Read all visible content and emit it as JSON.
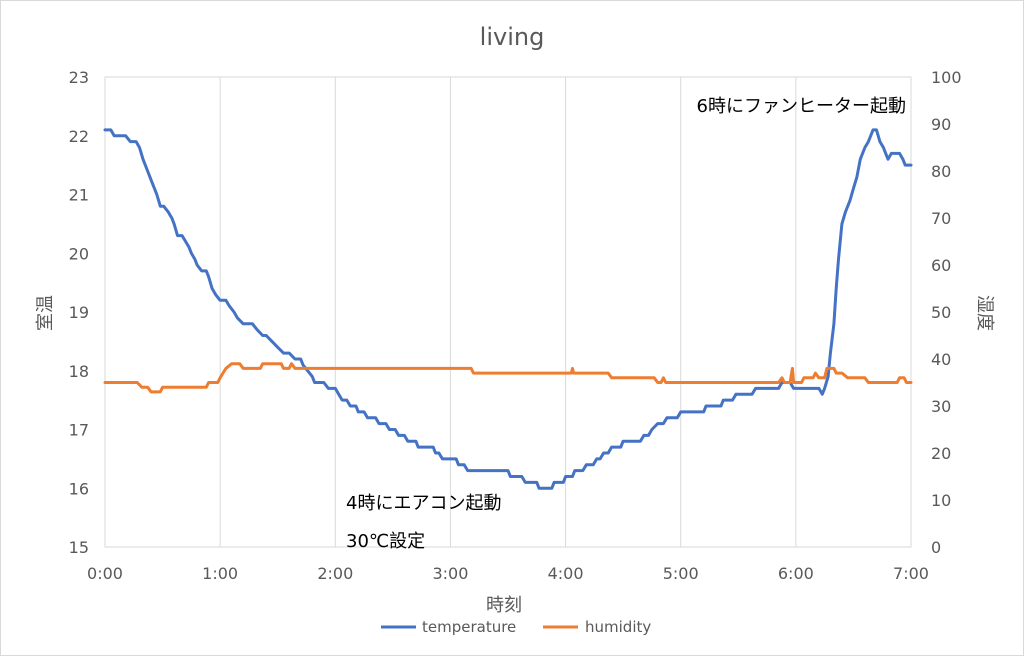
{
  "chart_data": {
    "type": "line",
    "title": "living",
    "xlabel": "時刻",
    "ylabel_left": "室温",
    "ylabel_right": "湿度",
    "x_unit": "hours",
    "xlim": [
      0,
      7
    ],
    "ylim_left": [
      15,
      23
    ],
    "ylim_right": [
      0,
      100
    ],
    "x_ticks": [
      "0:00",
      "1:00",
      "2:00",
      "3:00",
      "4:00",
      "5:00",
      "6:00",
      "7:00"
    ],
    "y_left_ticks": [
      "15",
      "16",
      "17",
      "18",
      "19",
      "20",
      "21",
      "22",
      "23"
    ],
    "y_right_ticks": [
      "0",
      "10",
      "20",
      "30",
      "40",
      "50",
      "60",
      "70",
      "80",
      "90",
      "100"
    ],
    "grid": "vertical",
    "legend": "bottom",
    "colors": {
      "temperature": "#4472c4",
      "humidity": "#ed7d31",
      "grid": "#d9d9d9",
      "text": "#595959"
    },
    "annotations": [
      "6時にファンヒーター起動",
      "4時にエアコン起動",
      "30℃設定"
    ],
    "series": [
      {
        "name": "temperature",
        "axis": "left",
        "points": [
          [
            0.0,
            22.1
          ],
          [
            0.05,
            22.1
          ],
          [
            0.08,
            22.0
          ],
          [
            0.18,
            22.0
          ],
          [
            0.22,
            21.9
          ],
          [
            0.27,
            21.9
          ],
          [
            0.3,
            21.8
          ],
          [
            0.33,
            21.6
          ],
          [
            0.37,
            21.4
          ],
          [
            0.41,
            21.2
          ],
          [
            0.45,
            21.0
          ],
          [
            0.48,
            20.8
          ],
          [
            0.51,
            20.8
          ],
          [
            0.55,
            20.7
          ],
          [
            0.58,
            20.6
          ],
          [
            0.6,
            20.5
          ],
          [
            0.63,
            20.3
          ],
          [
            0.67,
            20.3
          ],
          [
            0.7,
            20.2
          ],
          [
            0.73,
            20.1
          ],
          [
            0.75,
            20.0
          ],
          [
            0.78,
            19.9
          ],
          [
            0.8,
            19.8
          ],
          [
            0.84,
            19.7
          ],
          [
            0.88,
            19.7
          ],
          [
            0.9,
            19.6
          ],
          [
            0.93,
            19.4
          ],
          [
            0.96,
            19.3
          ],
          [
            1.0,
            19.2
          ],
          [
            1.05,
            19.2
          ],
          [
            1.08,
            19.1
          ],
          [
            1.12,
            19.0
          ],
          [
            1.15,
            18.9
          ],
          [
            1.2,
            18.8
          ],
          [
            1.28,
            18.8
          ],
          [
            1.32,
            18.7
          ],
          [
            1.37,
            18.6
          ],
          [
            1.4,
            18.6
          ],
          [
            1.45,
            18.5
          ],
          [
            1.5,
            18.4
          ],
          [
            1.55,
            18.3
          ],
          [
            1.6,
            18.3
          ],
          [
            1.65,
            18.2
          ],
          [
            1.7,
            18.2
          ],
          [
            1.72,
            18.1
          ],
          [
            1.76,
            18.0
          ],
          [
            1.8,
            17.9
          ],
          [
            1.82,
            17.8
          ],
          [
            1.9,
            17.8
          ],
          [
            1.94,
            17.7
          ],
          [
            2.0,
            17.7
          ],
          [
            2.03,
            17.6
          ],
          [
            2.06,
            17.5
          ],
          [
            2.1,
            17.5
          ],
          [
            2.13,
            17.4
          ],
          [
            2.18,
            17.4
          ],
          [
            2.2,
            17.3
          ],
          [
            2.25,
            17.3
          ],
          [
            2.28,
            17.2
          ],
          [
            2.35,
            17.2
          ],
          [
            2.38,
            17.1
          ],
          [
            2.44,
            17.1
          ],
          [
            2.47,
            17.0
          ],
          [
            2.52,
            17.0
          ],
          [
            2.55,
            16.9
          ],
          [
            2.6,
            16.9
          ],
          [
            2.63,
            16.8
          ],
          [
            2.7,
            16.8
          ],
          [
            2.72,
            16.7
          ],
          [
            2.85,
            16.7
          ],
          [
            2.87,
            16.6
          ],
          [
            2.9,
            16.6
          ],
          [
            2.93,
            16.5
          ],
          [
            3.05,
            16.5
          ],
          [
            3.07,
            16.4
          ],
          [
            3.12,
            16.4
          ],
          [
            3.15,
            16.3
          ],
          [
            3.5,
            16.3
          ],
          [
            3.52,
            16.2
          ],
          [
            3.62,
            16.2
          ],
          [
            3.65,
            16.1
          ],
          [
            3.75,
            16.1
          ],
          [
            3.77,
            16.0
          ],
          [
            3.88,
            16.0
          ],
          [
            3.9,
            16.1
          ],
          [
            3.98,
            16.1
          ],
          [
            4.0,
            16.2
          ],
          [
            4.06,
            16.2
          ],
          [
            4.08,
            16.3
          ],
          [
            4.15,
            16.3
          ],
          [
            4.18,
            16.4
          ],
          [
            4.24,
            16.4
          ],
          [
            4.27,
            16.5
          ],
          [
            4.3,
            16.5
          ],
          [
            4.33,
            16.6
          ],
          [
            4.37,
            16.6
          ],
          [
            4.4,
            16.7
          ],
          [
            4.48,
            16.7
          ],
          [
            4.5,
            16.8
          ],
          [
            4.65,
            16.8
          ],
          [
            4.68,
            16.9
          ],
          [
            4.72,
            16.9
          ],
          [
            4.75,
            17.0
          ],
          [
            4.8,
            17.1
          ],
          [
            4.85,
            17.1
          ],
          [
            4.88,
            17.2
          ],
          [
            4.97,
            17.2
          ],
          [
            5.0,
            17.3
          ],
          [
            5.2,
            17.3
          ],
          [
            5.22,
            17.4
          ],
          [
            5.35,
            17.4
          ],
          [
            5.37,
            17.5
          ],
          [
            5.45,
            17.5
          ],
          [
            5.48,
            17.6
          ],
          [
            5.62,
            17.6
          ],
          [
            5.65,
            17.7
          ],
          [
            5.85,
            17.7
          ],
          [
            5.88,
            17.8
          ],
          [
            5.95,
            17.8
          ],
          [
            5.98,
            17.7
          ],
          [
            6.2,
            17.7
          ],
          [
            6.23,
            17.6
          ],
          [
            6.25,
            17.7
          ],
          [
            6.28,
            17.9
          ],
          [
            6.3,
            18.3
          ],
          [
            6.33,
            18.8
          ],
          [
            6.35,
            19.4
          ],
          [
            6.37,
            19.9
          ],
          [
            6.4,
            20.5
          ],
          [
            6.43,
            20.7
          ],
          [
            6.47,
            20.9
          ],
          [
            6.5,
            21.1
          ],
          [
            6.53,
            21.3
          ],
          [
            6.56,
            21.6
          ],
          [
            6.6,
            21.8
          ],
          [
            6.63,
            21.9
          ],
          [
            6.65,
            22.0
          ],
          [
            6.67,
            22.1
          ],
          [
            6.7,
            22.1
          ],
          [
            6.73,
            21.9
          ],
          [
            6.76,
            21.8
          ],
          [
            6.78,
            21.7
          ],
          [
            6.8,
            21.6
          ],
          [
            6.83,
            21.7
          ],
          [
            6.9,
            21.7
          ],
          [
            6.93,
            21.6
          ],
          [
            6.95,
            21.5
          ],
          [
            7.0,
            21.5
          ]
        ]
      },
      {
        "name": "humidity",
        "axis": "right",
        "points": [
          [
            0.0,
            35
          ],
          [
            0.28,
            35
          ],
          [
            0.32,
            34
          ],
          [
            0.37,
            34
          ],
          [
            0.4,
            33
          ],
          [
            0.48,
            33
          ],
          [
            0.5,
            34
          ],
          [
            0.88,
            34
          ],
          [
            0.9,
            35
          ],
          [
            0.98,
            35
          ],
          [
            1.0,
            36
          ],
          [
            1.05,
            38
          ],
          [
            1.1,
            39
          ],
          [
            1.17,
            39
          ],
          [
            1.2,
            38
          ],
          [
            1.35,
            38
          ],
          [
            1.37,
            39
          ],
          [
            1.53,
            39
          ],
          [
            1.55,
            38
          ],
          [
            1.6,
            38
          ],
          [
            1.62,
            39
          ],
          [
            1.65,
            38
          ],
          [
            1.72,
            38
          ],
          [
            1.75,
            38
          ],
          [
            3.18,
            38
          ],
          [
            3.2,
            37
          ],
          [
            4.05,
            37
          ],
          [
            4.06,
            38
          ],
          [
            4.07,
            37
          ],
          [
            4.37,
            37
          ],
          [
            4.4,
            36
          ],
          [
            4.77,
            36
          ],
          [
            4.8,
            35
          ],
          [
            4.83,
            35
          ],
          [
            4.85,
            36
          ],
          [
            4.87,
            35
          ],
          [
            5.85,
            35
          ],
          [
            5.88,
            36
          ],
          [
            5.9,
            35
          ],
          [
            5.95,
            35
          ],
          [
            5.97,
            38
          ],
          [
            5.98,
            35
          ],
          [
            6.05,
            35
          ],
          [
            6.07,
            36
          ],
          [
            6.15,
            36
          ],
          [
            6.17,
            37
          ],
          [
            6.2,
            36
          ],
          [
            6.25,
            36
          ],
          [
            6.27,
            38
          ],
          [
            6.3,
            38
          ],
          [
            6.33,
            38
          ],
          [
            6.35,
            37
          ],
          [
            6.4,
            37
          ],
          [
            6.45,
            36
          ],
          [
            6.6,
            36
          ],
          [
            6.63,
            35
          ],
          [
            6.88,
            35
          ],
          [
            6.9,
            36
          ],
          [
            6.94,
            36
          ],
          [
            6.96,
            35
          ],
          [
            7.0,
            35
          ]
        ]
      }
    ]
  }
}
